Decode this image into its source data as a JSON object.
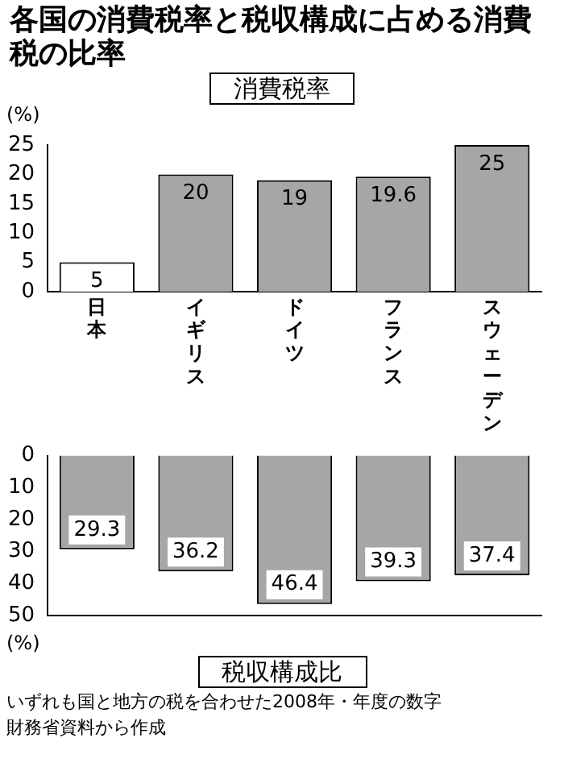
{
  "chart_data": [
    {
      "type": "bar",
      "title": "各国の消費税率と税収構成に占める消費税の比率",
      "subtitle": "消費税率",
      "ylabel": "(%)",
      "categories": [
        "日本",
        "イギリス",
        "ドイツ",
        "フランス",
        "スウェーデン"
      ],
      "values": [
        5,
        20,
        19,
        19.6,
        25
      ],
      "colors": [
        "#ffffff",
        "#a6a6a6",
        "#a6a6a6",
        "#a6a6a6",
        "#a6a6a6"
      ],
      "ylim": [
        0,
        25
      ],
      "yticks": [
        0,
        5,
        10,
        15,
        20,
        25
      ],
      "grid": false,
      "legend": false,
      "data_labels": true
    },
    {
      "type": "bar",
      "title": "税収構成比",
      "ylabel": "(%)",
      "categories": [
        "日本",
        "イギリス",
        "ドイツ",
        "フランス",
        "スウェーデン"
      ],
      "values": [
        29.3,
        36.2,
        46.4,
        39.3,
        37.4
      ],
      "colors": [
        "#a6a6a6",
        "#a6a6a6",
        "#a6a6a6",
        "#a6a6a6",
        "#a6a6a6"
      ],
      "ylim": [
        50,
        0
      ],
      "yticks": [
        0,
        10,
        20,
        30,
        40,
        50
      ],
      "grid": false,
      "legend": false,
      "data_labels": true,
      "tick_labels": "y",
      "annotations": [
        "いずれも国と地方の税を合わせた2008年・年度の数字",
        "財務省資料から作成"
      ]
    }
  ]
}
